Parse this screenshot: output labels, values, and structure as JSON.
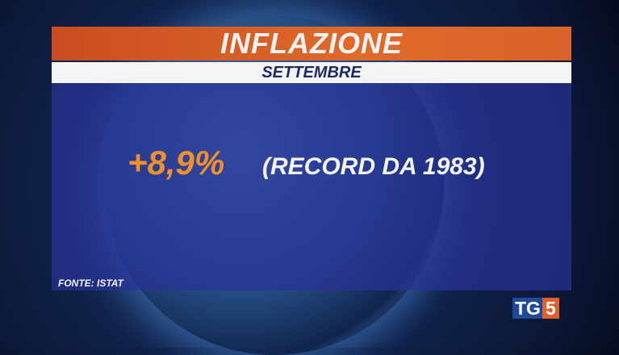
{
  "header": {
    "title": "INFLAZIONE",
    "subtitle": "SETTEMBRE"
  },
  "main": {
    "value": "+8,9%",
    "note": "(RECORD DA 1983)"
  },
  "footer": {
    "source": "FONTE: ISTAT"
  },
  "logo": {
    "text": "TG5",
    "parts": [
      "TG",
      "5"
    ]
  },
  "colors": {
    "title_bar": "#e06a2a",
    "subtitle_bar": "#f4f4f6",
    "panel": "#28329a",
    "value": "#f0902a"
  }
}
